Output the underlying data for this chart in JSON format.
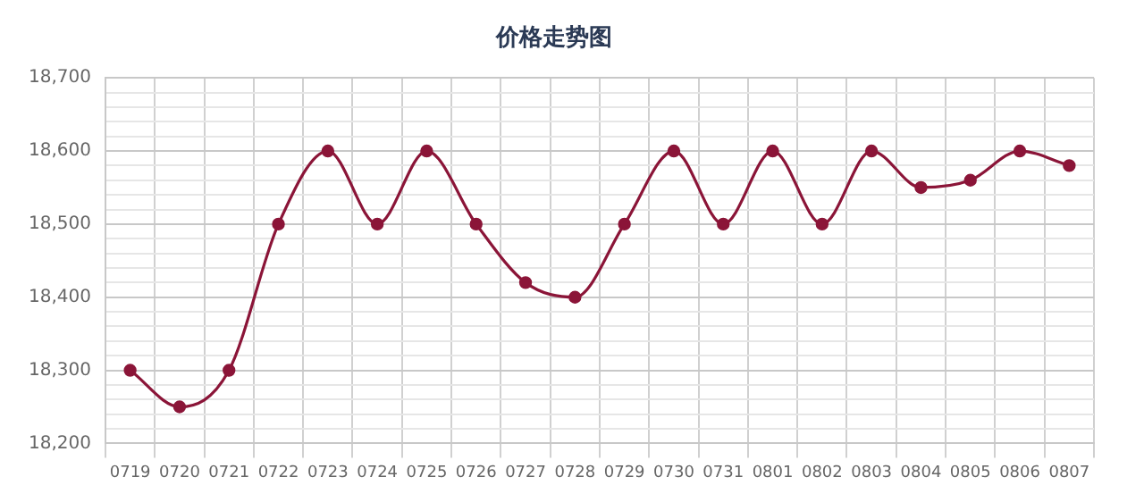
{
  "chart_data": {
    "type": "line",
    "title": "价格走势图",
    "categories": [
      "0719",
      "0720",
      "0721",
      "0722",
      "0723",
      "0724",
      "0725",
      "0726",
      "0727",
      "0728",
      "0729",
      "0730",
      "0731",
      "0801",
      "0802",
      "0803",
      "0804",
      "0805",
      "0806",
      "0807"
    ],
    "series": [
      {
        "color": "#8b1538",
        "values": [
          18300,
          18250,
          18300,
          18500,
          18600,
          18500,
          18600,
          18500,
          18420,
          18400,
          18500,
          18600,
          18500,
          18600,
          18500,
          18600,
          18550,
          18560,
          18600,
          18580
        ]
      }
    ],
    "ylim": [
      18200,
      18700
    ],
    "yticks": [
      {
        "value": 18200,
        "label": "18,200"
      },
      {
        "value": 18220,
        "label": null
      },
      {
        "value": 18240,
        "label": null
      },
      {
        "value": 18260,
        "label": null
      },
      {
        "value": 18280,
        "label": null
      },
      {
        "value": 18300,
        "label": "18,300"
      },
      {
        "value": 18320,
        "label": null
      },
      {
        "value": 18340,
        "label": null
      },
      {
        "value": 18360,
        "label": null
      },
      {
        "value": 18380,
        "label": null
      },
      {
        "value": 18400,
        "label": "18,400"
      },
      {
        "value": 18420,
        "label": null
      },
      {
        "value": 18440,
        "label": null
      },
      {
        "value": 18460,
        "label": null
      },
      {
        "value": 18480,
        "label": null
      },
      {
        "value": 18500,
        "label": "18,500"
      },
      {
        "value": 18520,
        "label": null
      },
      {
        "value": 18540,
        "label": null
      },
      {
        "value": 18560,
        "label": null
      },
      {
        "value": 18580,
        "label": null
      },
      {
        "value": 18600,
        "label": "18,600"
      },
      {
        "value": 18620,
        "label": null
      },
      {
        "value": 18640,
        "label": null
      },
      {
        "value": 18660,
        "label": null
      },
      {
        "value": 18680,
        "label": null
      },
      {
        "value": 18700,
        "label": "18,700"
      }
    ],
    "grid": true,
    "marker": "circle",
    "line_style": "solid"
  }
}
